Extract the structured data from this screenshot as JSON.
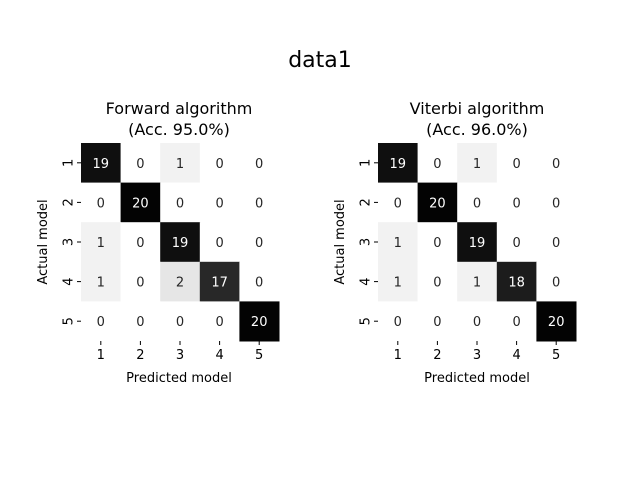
{
  "figure_title": "data1",
  "chart_data": [
    {
      "type": "heatmap",
      "title_line1": "Forward algorithm",
      "title_line2": "(Acc. 95.0%)",
      "xlabel": "Predicted model",
      "ylabel": "Actual model",
      "x_ticks": [
        "1",
        "2",
        "3",
        "4",
        "5"
      ],
      "y_ticks": [
        "1",
        "2",
        "3",
        "4",
        "5"
      ],
      "matrix": [
        [
          19,
          0,
          1,
          0,
          0
        ],
        [
          0,
          20,
          0,
          0,
          0
        ],
        [
          1,
          0,
          19,
          0,
          0
        ],
        [
          1,
          0,
          2,
          17,
          0
        ],
        [
          0,
          0,
          0,
          0,
          20
        ]
      ],
      "colormap": "greys",
      "vmin": 0,
      "vmax": 20,
      "colorbar": false
    },
    {
      "type": "heatmap",
      "title_line1": "Viterbi algorithm",
      "title_line2": "(Acc. 96.0%)",
      "xlabel": "Predicted model",
      "ylabel": "Actual model",
      "x_ticks": [
        "1",
        "2",
        "3",
        "4",
        "5"
      ],
      "y_ticks": [
        "1",
        "2",
        "3",
        "4",
        "5"
      ],
      "matrix": [
        [
          19,
          0,
          1,
          0,
          0
        ],
        [
          0,
          20,
          0,
          0,
          0
        ],
        [
          1,
          0,
          19,
          0,
          0
        ],
        [
          1,
          0,
          1,
          18,
          0
        ],
        [
          0,
          0,
          0,
          0,
          20
        ]
      ],
      "colormap": "greys",
      "vmin": 0,
      "vmax": 20,
      "colorbar": false
    }
  ]
}
